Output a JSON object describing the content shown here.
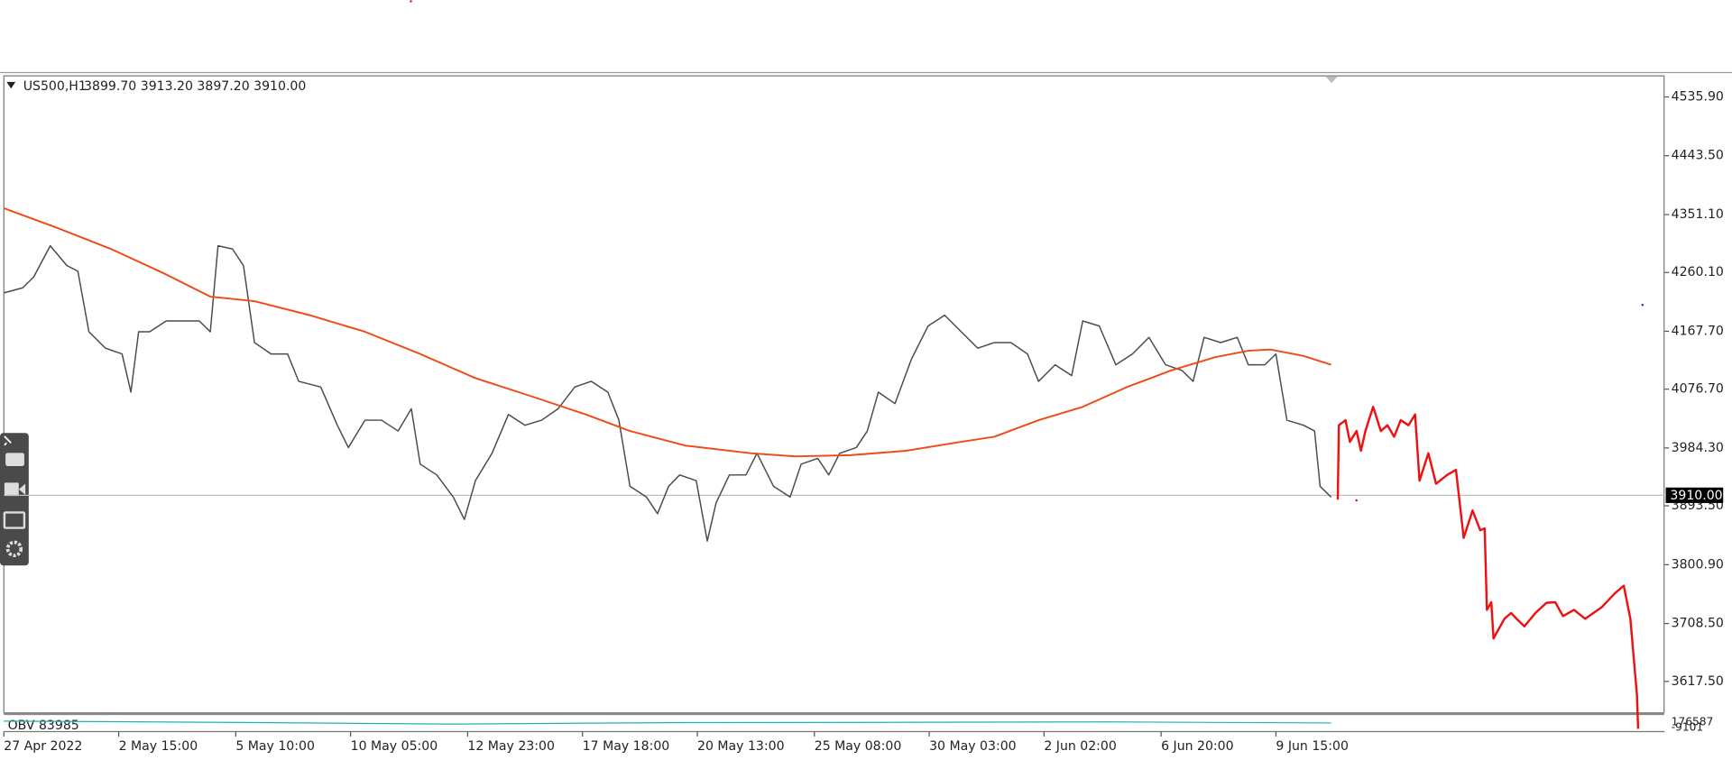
{
  "chart_data": {
    "type": "line",
    "title": "US500,H1",
    "subtitle": "3899.70 3913.20 3897.20 3910.00",
    "xlim": [
      0,
      752
    ],
    "xticks": [
      {
        "value": 0,
        "label": "27 Apr 2022"
      },
      {
        "value": 52,
        "label": "2 May 15:00"
      },
      {
        "value": 105,
        "label": "5 May 10:00"
      },
      {
        "value": 157,
        "label": "10 May 05:00"
      },
      {
        "value": 210,
        "label": "12 May 23:00"
      },
      {
        "value": 262,
        "label": "17 May 18:00"
      },
      {
        "value": 314,
        "label": "20 May 13:00"
      },
      {
        "value": 367,
        "label": "25 May 08:00"
      },
      {
        "value": 419,
        "label": "30 May 03:00"
      },
      {
        "value": 471,
        "label": "2 Jun 02:00"
      },
      {
        "value": 524,
        "label": "6 Jun 20:00"
      },
      {
        "value": 576,
        "label": "9 Jun 15:00"
      }
    ],
    "ylim": [
      3569,
      4569
    ],
    "yticks": [
      {
        "value": 4535.9,
        "label": "4535.90"
      },
      {
        "value": 4443.5,
        "label": "4443.50"
      },
      {
        "value": 4351.1,
        "label": "4351.10"
      },
      {
        "value": 4260.1,
        "label": "4260.10"
      },
      {
        "value": 4167.7,
        "label": "4167.70"
      },
      {
        "value": 4076.7,
        "label": "4076.70"
      },
      {
        "value": 3984.3,
        "label": "3984.30"
      },
      {
        "value": 3893.5,
        "label": "3893.50"
      },
      {
        "value": 3800.9,
        "label": "3800.90"
      },
      {
        "value": 3708.5,
        "label": "3708.50"
      },
      {
        "value": 3617.5,
        "label": "3617.50"
      }
    ],
    "current_price": {
      "value": 3910,
      "label": "3910.00"
    },
    "series": [
      {
        "color": "#4a4a4a",
        "width": 1.2,
        "x": [
          0,
          8.5,
          13.5,
          21,
          28.5,
          33.5,
          38.5,
          46,
          53.5,
          57.5,
          61,
          66,
          73.5,
          81,
          88.5,
          93.5,
          97,
          103.5,
          108.5,
          113.5,
          121,
          128.5,
          133.5,
          143.5,
          151,
          156,
          163.5,
          171,
          178.5,
          184.5,
          188.5,
          196,
          203.5,
          208.5,
          213.5,
          221,
          228.5,
          236,
          243.5,
          251,
          258.5,
          266,
          273.5,
          278.5,
          283.5,
          291,
          296,
          301,
          306,
          313.5,
          318.5,
          322.5,
          328.5,
          336,
          341,
          348.5,
          356,
          361,
          368.5,
          373.5,
          378.5,
          386,
          391,
          396,
          403.5,
          411,
          418.5,
          426,
          433.5,
          441,
          448.5,
          456,
          463.5,
          468.5,
          476,
          483.5,
          488.5,
          496,
          503.5,
          511,
          518.5,
          526,
          533.5,
          538.5,
          543.5,
          551,
          558.5,
          563.5,
          571,
          576,
          581,
          588.5,
          593.5,
          596,
          601
        ],
        "values": [
          4228,
          4236,
          4253,
          4302,
          4271,
          4262,
          4167,
          4141,
          4132,
          4072,
          4167,
          4167,
          4184,
          4184,
          4184,
          4167,
          4302,
          4297,
          4271,
          4150,
          4132,
          4132,
          4089,
          4080,
          4020,
          3985,
          4028,
          4028,
          4011,
          4046,
          3959,
          3942,
          3907,
          3872,
          3933,
          3976,
          4037,
          4020,
          4028,
          4046,
          4080,
          4089,
          4072,
          4028,
          3924,
          3907,
          3881,
          3924,
          3942,
          3933,
          3838,
          3898,
          3942,
          3942,
          3976,
          3924,
          3907,
          3959,
          3968,
          3942,
          3976,
          3985,
          4011,
          4072,
          4054,
          4124,
          4176,
          4193,
          4167,
          4141,
          4150,
          4150,
          4132,
          4089,
          4115,
          4098,
          4184,
          4176,
          4115,
          4132,
          4158,
          4115,
          4106,
          4089,
          4158,
          4150,
          4158,
          4115,
          4115,
          4132,
          4028,
          4020,
          4011,
          3924,
          3907
        ]
      },
      {
        "color": "#f04a16",
        "width": 1.6,
        "x": [
          0,
          23.5,
          48.5,
          73.5,
          93.5,
          113.5,
          138.5,
          163.5,
          188.5,
          213.5,
          238.5,
          263.5,
          283.5,
          308.5,
          338.5,
          358.5,
          383.5,
          408.5,
          433.5,
          448.5,
          468.5,
          488.5,
          508.5,
          528.5,
          548.5,
          563.5,
          573.5,
          588.5,
          601
        ],
        "values": [
          4361,
          4331,
          4297,
          4257,
          4222,
          4215,
          4193,
          4167,
          4132,
          4094,
          4066,
          4037,
          4011,
          3988,
          3976,
          3971,
          3973,
          3980,
          3994,
          4002,
          4028,
          4049,
          4080,
          4106,
          4127,
          4137,
          4139,
          4129,
          4115
        ]
      },
      {
        "color": "#ee1111",
        "width": 2,
        "x": [
          604,
          604.5,
          607.5,
          609.5,
          612.5,
          614.5,
          616.5,
          620,
          623.5,
          626.5,
          629.5,
          632.5,
          636,
          639,
          641,
          645,
          648.5,
          653.5,
          657.5,
          661,
          665,
          668.5,
          670.5,
          671.5,
          673.5,
          674.5,
          679.5,
          682.5,
          685,
          688.5,
          693.5,
          698.5,
          702.5,
          706,
          711,
          716,
          723.5,
          729.5,
          733.5,
          736.5,
          739.5,
          740
        ],
        "values": [
          3903,
          4020,
          4028,
          3994,
          4011,
          3980,
          4011,
          4049,
          4011,
          4020,
          4002,
          4028,
          4020,
          4037,
          3933,
          3976,
          3928,
          3942,
          3950,
          3843,
          3886,
          3855,
          3858,
          3730,
          3742,
          3685,
          3716,
          3725,
          3716,
          3704,
          3725,
          3741,
          3742,
          3720,
          3730,
          3716,
          3734,
          3756,
          3768,
          3716,
          3595,
          3543
        ]
      }
    ],
    "indicator": {
      "label": "OBV 83985",
      "ylim": [
        -9101,
        176587
      ],
      "yticks": [
        176587,
        -9101
      ],
      "color": "#20b2aa",
      "x": [
        0,
        100,
        200,
        300,
        400,
        500,
        601
      ],
      "values": [
        120000,
        100000,
        70000,
        95000,
        100000,
        108000,
        90000
      ]
    }
  }
}
